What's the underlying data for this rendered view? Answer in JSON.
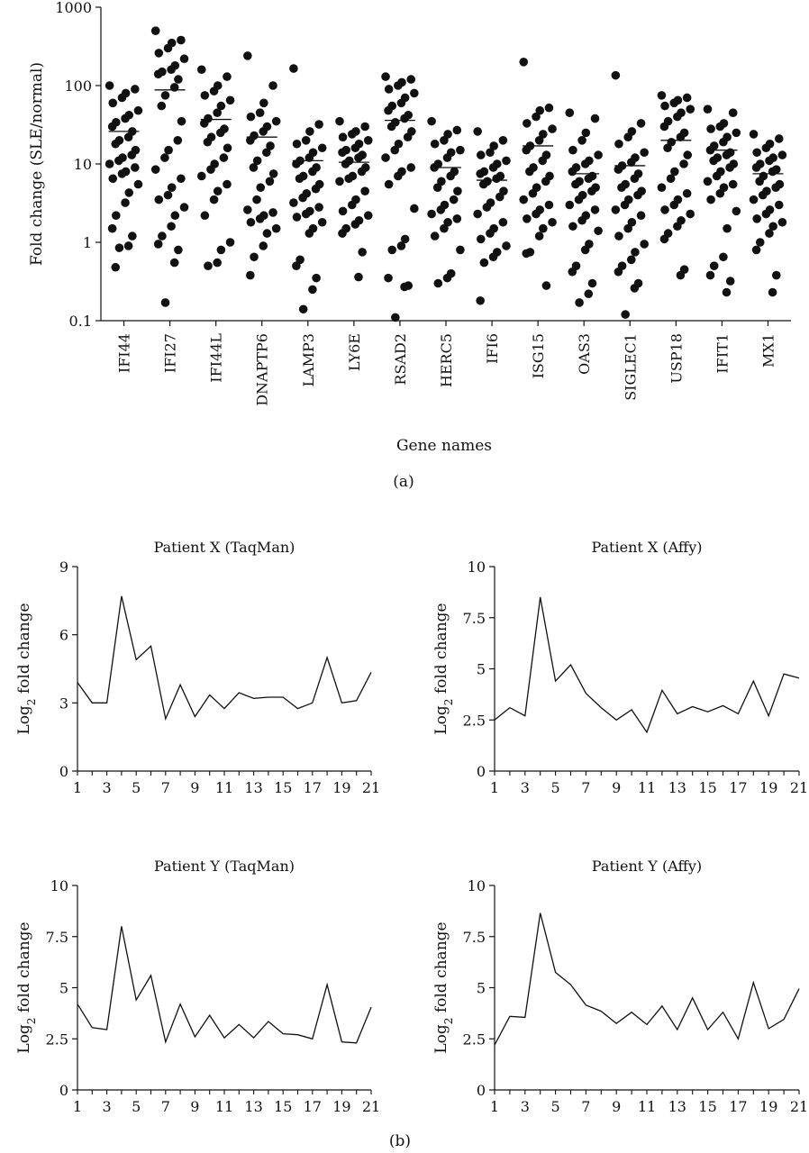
{
  "figure": {
    "panel_a_label": "(a)",
    "panel_b_label": "(b)"
  },
  "chart_data": [
    {
      "id": "a",
      "type": "scatter",
      "title": "",
      "xlabel": "Gene names",
      "ylabel": "Fold change (SLE/normal)",
      "yscale": "log",
      "ylim": [
        0.1,
        1000
      ],
      "ytick_values": [
        0.1,
        1,
        10,
        100,
        1000
      ],
      "ytick_labels": [
        "0.1",
        "1",
        "10",
        "100",
        "1000"
      ],
      "categories": [
        "IFI44",
        "IFI27",
        "IFI44L",
        "DNAPTP6",
        "LAMP3",
        "LY6E",
        "RSAD2",
        "HERC5",
        "IFI6",
        "ISG15",
        "OAS3",
        "SIGLEC1",
        "USP18",
        "IFIT1",
        "MX1"
      ],
      "medians": [
        26,
        88,
        37,
        22,
        11,
        10.5,
        36,
        9,
        6.2,
        17,
        7.5,
        9.5,
        20,
        15,
        7.5
      ],
      "points": [
        [
          100,
          90,
          80,
          70,
          60,
          48,
          42,
          38,
          34,
          30,
          26,
          22,
          20,
          18,
          15,
          13,
          12,
          11,
          10,
          9,
          8,
          7.5,
          6.5,
          5.5,
          4.3,
          3.2,
          2.2,
          1.5,
          1.2,
          0.9,
          0.85,
          0.48
        ],
        [
          500,
          380,
          350,
          300,
          260,
          220,
          180,
          160,
          150,
          140,
          120,
          95,
          75,
          55,
          35,
          20,
          15,
          12,
          8.5,
          6.5,
          5,
          4,
          3.5,
          2.8,
          2.2,
          1.6,
          1.2,
          0.95,
          0.8,
          0.55,
          0.17
        ],
        [
          160,
          130,
          100,
          85,
          75,
          65,
          55,
          45,
          38,
          33,
          28,
          25,
          22,
          19,
          16,
          12,
          10,
          8.5,
          7,
          5.5,
          4.5,
          3.5,
          2.2,
          1,
          0.8,
          0.55,
          0.5
        ],
        [
          240,
          100,
          60,
          45,
          40,
          35,
          30,
          26,
          23,
          20,
          17,
          14,
          11,
          9,
          7.5,
          6,
          5,
          3.5,
          2.6,
          2.4,
          2.2,
          2,
          1.8,
          1.5,
          1.3,
          0.9,
          0.65,
          0.38
        ],
        [
          165,
          32,
          26,
          20,
          18,
          16,
          14,
          12,
          11,
          10,
          9,
          8,
          7,
          6.5,
          5.5,
          4.8,
          4.2,
          3.7,
          3.2,
          2.8,
          2.5,
          2.3,
          2.1,
          1.8,
          1.5,
          1.3,
          0.6,
          0.5,
          0.35,
          0.25,
          0.14
        ],
        [
          35,
          30,
          26,
          24,
          22,
          20,
          18,
          16,
          15,
          14,
          13,
          12,
          11,
          10,
          9,
          8,
          7,
          6.5,
          6,
          4.5,
          3.5,
          3,
          2.5,
          2.2,
          1.9,
          1.7,
          1.5,
          1.3,
          0.75,
          0.36
        ],
        [
          130,
          120,
          110,
          100,
          90,
          80,
          70,
          60,
          55,
          48,
          42,
          38,
          34,
          30,
          26,
          22,
          18,
          15,
          12,
          9,
          8,
          7,
          5.5,
          2.7,
          1.1,
          0.9,
          0.8,
          0.35,
          0.28,
          0.27,
          0.11
        ],
        [
          35,
          27,
          24,
          20,
          18,
          15,
          14,
          12,
          10,
          9,
          8,
          7,
          6,
          5,
          4.5,
          3.5,
          3,
          2.6,
          2.3,
          2,
          1.8,
          1.5,
          1.2,
          0.8,
          0.4,
          0.35,
          0.3
        ],
        [
          26,
          20,
          17,
          14,
          13,
          11,
          10,
          9,
          8,
          7.5,
          7,
          6.5,
          6,
          5.5,
          4.5,
          3.8,
          3.2,
          2.8,
          2.3,
          1.8,
          1.5,
          1.3,
          1.1,
          0.9,
          0.75,
          0.65,
          0.55,
          0.18
        ],
        [
          200,
          52,
          48,
          40,
          33,
          28,
          24,
          20,
          17,
          15,
          13,
          11,
          9,
          8,
          7,
          6,
          5,
          4.2,
          3.5,
          3,
          2.6,
          2.3,
          2,
          1.8,
          1.5,
          1.2,
          0.75,
          0.72,
          0.28
        ],
        [
          45,
          38,
          25,
          20,
          15,
          13,
          11,
          10,
          9,
          8,
          7,
          6.5,
          6,
          5.5,
          5,
          4.5,
          4,
          3.5,
          3,
          2.6,
          2.2,
          1.9,
          1.6,
          1.4,
          0.95,
          0.8,
          0.5,
          0.42,
          0.3,
          0.22,
          0.17
        ],
        [
          135,
          33,
          26,
          22,
          18,
          14,
          12,
          10.5,
          9.5,
          8.5,
          7.5,
          6.5,
          5.5,
          5,
          4.5,
          4,
          3.5,
          3,
          2.6,
          2.2,
          1.8,
          1.5,
          1.2,
          0.95,
          0.75,
          0.6,
          0.5,
          0.42,
          0.3,
          0.26,
          0.12
        ],
        [
          75,
          70,
          65,
          60,
          55,
          50,
          45,
          40,
          35,
          30,
          25,
          22,
          19,
          16,
          13,
          10,
          8,
          6.5,
          5,
          4.2,
          3.5,
          3,
          2.6,
          2.3,
          1.9,
          1.6,
          1.3,
          1.1,
          0.45,
          0.38
        ],
        [
          50,
          45,
          33,
          30,
          28,
          25,
          22,
          19,
          17,
          15,
          14,
          13,
          12,
          11,
          10,
          9,
          8,
          7,
          6,
          5.5,
          5,
          4.2,
          3.5,
          2.5,
          1.5,
          0.65,
          0.5,
          0.38,
          0.32,
          0.23
        ],
        [
          24,
          21,
          18,
          16,
          14,
          13,
          12,
          11,
          10,
          9,
          8.5,
          8,
          7,
          6,
          5.5,
          5,
          4.5,
          4,
          3.5,
          3,
          2.6,
          2.3,
          2,
          1.8,
          1.6,
          1.3,
          1,
          0.8,
          0.38,
          0.23
        ]
      ]
    },
    {
      "id": "b1",
      "type": "line",
      "title": "Patient X (TaqMan)",
      "xlabel": "",
      "ylabel": "Log2 fold change",
      "xlim": [
        1,
        21
      ],
      "ylim": [
        0,
        9
      ],
      "xtick_labels": [
        "1",
        "3",
        "5",
        "7",
        "9",
        "11",
        "13",
        "15",
        "17",
        "19",
        "21"
      ],
      "ytick_labels": [
        "0",
        "3",
        "6",
        "9"
      ],
      "x": [
        1,
        2,
        3,
        4,
        5,
        6,
        7,
        8,
        9,
        10,
        11,
        12,
        13,
        14,
        15,
        16,
        17,
        18,
        19,
        20,
        21
      ],
      "values": [
        3.9,
        3.0,
        3.0,
        7.7,
        4.9,
        5.5,
        2.3,
        3.8,
        2.4,
        3.35,
        2.75,
        3.45,
        3.2,
        3.25,
        3.25,
        2.75,
        3.0,
        5.0,
        3.0,
        3.1,
        4.35
      ]
    },
    {
      "id": "b2",
      "type": "line",
      "title": "Patient X (Affy)",
      "xlabel": "",
      "ylabel": "Log2 fold change",
      "xlim": [
        1,
        21
      ],
      "ylim": [
        0,
        10
      ],
      "xtick_labels": [
        "1",
        "3",
        "5",
        "7",
        "9",
        "11",
        "13",
        "15",
        "17",
        "19",
        "21"
      ],
      "ytick_labels": [
        "0",
        "2.5",
        "5",
        "7.5",
        "10"
      ],
      "x": [
        1,
        2,
        3,
        4,
        5,
        6,
        7,
        8,
        9,
        10,
        11,
        12,
        13,
        14,
        15,
        16,
        17,
        18,
        19,
        20,
        21
      ],
      "values": [
        2.5,
        3.1,
        2.7,
        8.5,
        4.4,
        5.2,
        3.8,
        3.1,
        2.5,
        3.0,
        1.9,
        3.95,
        2.8,
        3.15,
        2.9,
        3.2,
        2.8,
        4.4,
        2.7,
        4.75,
        4.55
      ]
    },
    {
      "id": "b3",
      "type": "line",
      "title": "Patient Y (TaqMan)",
      "xlabel": "",
      "ylabel": "Log2 fold change",
      "xlim": [
        1,
        21
      ],
      "ylim": [
        0,
        10
      ],
      "xtick_labels": [
        "1",
        "3",
        "5",
        "7",
        "9",
        "11",
        "13",
        "15",
        "17",
        "19",
        "21"
      ],
      "ytick_labels": [
        "0",
        "2.5",
        "5",
        "7.5",
        "10"
      ],
      "x": [
        1,
        2,
        3,
        4,
        5,
        6,
        7,
        8,
        9,
        10,
        11,
        12,
        13,
        14,
        15,
        16,
        17,
        18,
        19,
        20,
        21
      ],
      "values": [
        4.2,
        3.05,
        2.95,
        8.0,
        4.4,
        5.6,
        2.35,
        4.2,
        2.6,
        3.65,
        2.55,
        3.2,
        2.55,
        3.35,
        2.75,
        2.7,
        2.5,
        5.15,
        2.35,
        2.3,
        4.05
      ]
    },
    {
      "id": "b4",
      "type": "line",
      "title": "Patient Y (Affy)",
      "xlabel": "",
      "ylabel": "Log2 fold change",
      "xlim": [
        1,
        21
      ],
      "ylim": [
        0,
        10
      ],
      "xtick_labels": [
        "1",
        "3",
        "5",
        "7",
        "9",
        "11",
        "13",
        "15",
        "17",
        "19",
        "21"
      ],
      "ytick_labels": [
        "0",
        "2.5",
        "5",
        "7.5",
        "10"
      ],
      "x": [
        1,
        2,
        3,
        4,
        5,
        6,
        7,
        8,
        9,
        10,
        11,
        12,
        13,
        14,
        15,
        16,
        17,
        18,
        19,
        20,
        21
      ],
      "values": [
        2.2,
        3.6,
        3.55,
        8.65,
        5.75,
        5.15,
        4.15,
        3.85,
        3.25,
        3.8,
        3.2,
        4.1,
        2.95,
        4.5,
        2.95,
        3.8,
        2.5,
        5.25,
        3.0,
        3.45,
        4.95
      ]
    }
  ]
}
